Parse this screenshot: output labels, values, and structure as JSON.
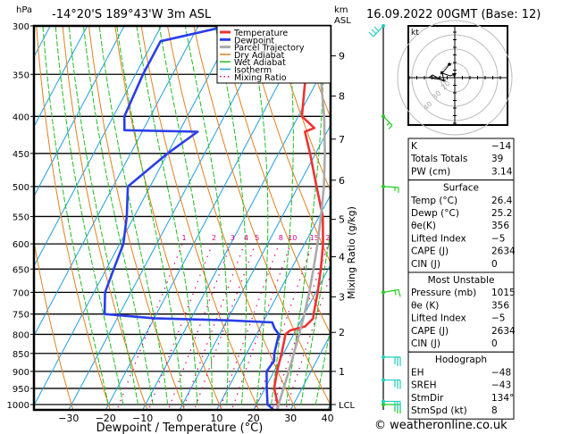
{
  "header": {
    "pressure_unit": "hPa",
    "location": "-14°20'S  189°43'W  3m  ASL",
    "km_unit": "km",
    "asl_label": "ASL",
    "datetime": "16.09.2022  00GMT  (Base: 12)"
  },
  "footer": {
    "credit": "© weatheronline.co.uk"
  },
  "chart_data": {
    "type": "line",
    "subtype": "skew-T log-P diagram",
    "title": "-14°20'S 189°43'W 3m ASL",
    "xlabel": "Dewpoint / Temperature (°C)",
    "ylabel": "hPa",
    "right_axis_label": "Mixing Ratio (g/kg)",
    "xlim": [
      -40,
      40
    ],
    "ylim": [
      1000,
      300
    ],
    "x_ticks": [
      -30,
      -20,
      -10,
      0,
      10,
      20,
      30,
      40
    ],
    "pressure_levels": [
      300,
      350,
      400,
      450,
      500,
      550,
      600,
      650,
      700,
      750,
      800,
      850,
      900,
      950,
      1000
    ],
    "km_ticks": [
      {
        "km": "1",
        "p": 900
      },
      {
        "km": "2",
        "p": 795
      },
      {
        "km": "3",
        "p": 710
      },
      {
        "km": "4",
        "p": 625
      },
      {
        "km": "5",
        "p": 555
      },
      {
        "km": "6",
        "p": 490
      },
      {
        "km": "7",
        "p": 430
      },
      {
        "km": "8",
        "p": 375
      },
      {
        "km": "9",
        "p": 330
      },
      {
        "km": "LCL",
        "p": 1000
      }
    ],
    "mixing_ratio_labels": [
      "1",
      "2",
      "3",
      "4",
      "5",
      "8",
      "10",
      "15",
      "20",
      "25"
    ],
    "mixing_ratio_label_pressure": 600,
    "legend": [
      {
        "name": "Temperature",
        "color": "#ee3333"
      },
      {
        "name": "Dewpoint",
        "color": "#2a3ee8"
      },
      {
        "name": "Parcel Trajectory",
        "color": "#aaaaaa"
      },
      {
        "name": "Dry Adiabat",
        "color": "#e08020"
      },
      {
        "name": "Wet Adiabat",
        "color": "#22bb22"
      },
      {
        "name": "Isotherm",
        "color": "#1e9ee0"
      },
      {
        "name": "Mixing Ratio",
        "color": "#e0007a"
      }
    ],
    "legend_position": "top-right",
    "series": [
      {
        "name": "Temperature",
        "points": [
          [
            1015,
            26.4
          ],
          [
            1000,
            25.8
          ],
          [
            950,
            22.5
          ],
          [
            900,
            20.8
          ],
          [
            850,
            19.5
          ],
          [
            800,
            17.8
          ],
          [
            790,
            18.5
          ],
          [
            780,
            22.0
          ],
          [
            760,
            23.0
          ],
          [
            750,
            22.5
          ],
          [
            700,
            20.5
          ],
          [
            650,
            18.0
          ],
          [
            600,
            15.0
          ],
          [
            550,
            11.0
          ],
          [
            500,
            5.0
          ],
          [
            450,
            -1.5
          ],
          [
            420,
            -6.0
          ],
          [
            415,
            -4.0
          ],
          [
            400,
            -9.0
          ],
          [
            350,
            -14.0
          ],
          [
            300,
            -22.0
          ]
        ]
      },
      {
        "name": "Dewpoint",
        "points": [
          [
            1015,
            25.2
          ],
          [
            1000,
            23.0
          ],
          [
            950,
            20.5
          ],
          [
            900,
            18.0
          ],
          [
            870,
            18.5
          ],
          [
            850,
            17.5
          ],
          [
            800,
            16.0
          ],
          [
            785,
            14.0
          ],
          [
            770,
            12.5
          ],
          [
            765,
            0.0
          ],
          [
            760,
            -20.0
          ],
          [
            750,
            -34.0
          ],
          [
            700,
            -37.0
          ],
          [
            650,
            -38.0
          ],
          [
            600,
            -39.0
          ],
          [
            550,
            -42.0
          ],
          [
            500,
            -46.0
          ],
          [
            450,
            -40.0
          ],
          [
            420,
            -35.0
          ],
          [
            418,
            -55.0
          ],
          [
            400,
            -57.0
          ],
          [
            350,
            -58.0
          ],
          [
            315,
            -58.0
          ],
          [
            300,
            -42.0
          ]
        ]
      },
      {
        "name": "Parcel Trajectory",
        "points": [
          [
            1015,
            26.4
          ],
          [
            1000,
            26.0
          ],
          [
            950,
            25.0
          ],
          [
            900,
            24.0
          ],
          [
            850,
            22.8
          ],
          [
            800,
            21.5
          ],
          [
            750,
            20.0
          ],
          [
            700,
            18.2
          ],
          [
            650,
            16.0
          ],
          [
            600,
            13.5
          ],
          [
            550,
            10.5
          ],
          [
            500,
            7.0
          ],
          [
            450,
            2.5
          ],
          [
            400,
            -3.0
          ],
          [
            350,
            -10.0
          ],
          [
            300,
            -19.0
          ]
        ]
      }
    ],
    "wind_barbs": [
      {
        "p": 1000,
        "color": "#22cc22"
      },
      {
        "p": 990,
        "color": "#22ccbb"
      },
      {
        "p": 925,
        "color": "#22ccbb"
      },
      {
        "p": 860,
        "color": "#22ccbb"
      },
      {
        "p": 700,
        "color": "#22cc22"
      },
      {
        "p": 500,
        "color": "#22cc22"
      },
      {
        "p": 400,
        "color": "#22cc22"
      },
      {
        "p": 300,
        "color": "#22ccbb"
      }
    ],
    "hodograph": {
      "unit": "kt",
      "ring_labels": [
        "10",
        "20",
        "30",
        "40"
      ]
    }
  },
  "indices": {
    "rows": [
      {
        "label": "K",
        "value": "-14"
      },
      {
        "label": "Totals Totals",
        "value": "39"
      },
      {
        "label": "PW (cm)",
        "value": "3.14"
      }
    ]
  },
  "surface": {
    "title": "Surface",
    "rows": [
      {
        "label": "Temp (°C)",
        "value": "26.4"
      },
      {
        "label": "Dewp (°C)",
        "value": "25.2"
      },
      {
        "label": "θe(K)",
        "value": "356"
      },
      {
        "label": "Lifted Index",
        "value": "-5"
      },
      {
        "label": "CAPE (J)",
        "value": "2634"
      },
      {
        "label": "CIN (J)",
        "value": "0"
      }
    ]
  },
  "most_unstable": {
    "title": "Most Unstable",
    "rows": [
      {
        "label": "Pressure (mb)",
        "value": "1015"
      },
      {
        "label": "θe (K)",
        "value": "356"
      },
      {
        "label": "Lifted Index",
        "value": "-5"
      },
      {
        "label": "CAPE (J)",
        "value": "2634"
      },
      {
        "label": "CIN (J)",
        "value": "0"
      }
    ]
  },
  "hodograph_table": {
    "title": "Hodograph",
    "rows": [
      {
        "label": "EH",
        "value": "-48"
      },
      {
        "label": "SREH",
        "value": "-43"
      },
      {
        "label": "StmDir",
        "value": "134°"
      },
      {
        "label": "StmSpd (kt)",
        "value": "8"
      }
    ]
  }
}
